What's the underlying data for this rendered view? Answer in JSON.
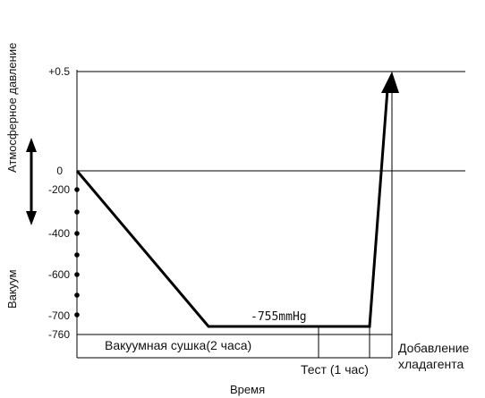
{
  "y_axis": {
    "upper_label": "Атмосферное давление",
    "lower_label": "Вакуум",
    "ticks": [
      "+0.5",
      "0",
      "-200",
      "-400",
      "-600",
      "-700",
      "-760"
    ]
  },
  "x_axis": {
    "label": "Время"
  },
  "curve_label": "-755mmHg",
  "phases": {
    "drying": "Вакуумная сушка(2 часа)",
    "test": "Тест (1 час)",
    "charging_line1": "Добавление",
    "charging_line2": "хладагента"
  },
  "colors": {
    "line": "#000000",
    "text": "#111111"
  }
}
